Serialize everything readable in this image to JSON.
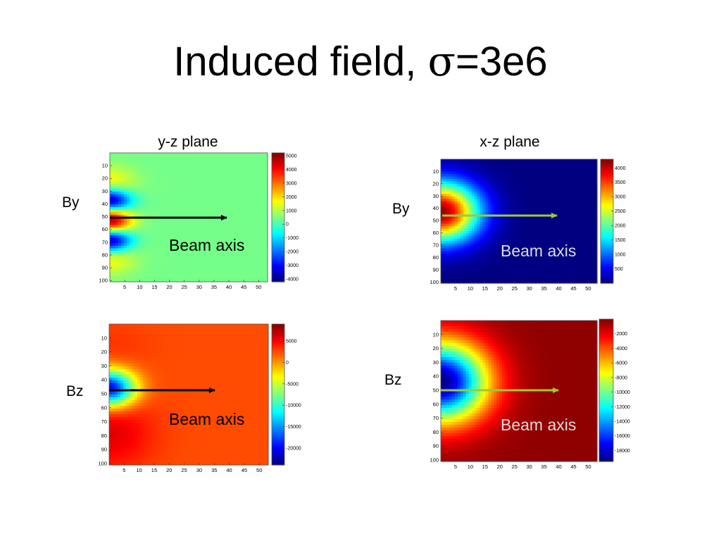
{
  "slide": {
    "title_prefix": "Induced field, ",
    "title_symbol": "σ",
    "title_suffix": "=3e6",
    "col_labels": [
      "y-z plane",
      "x-z plane"
    ],
    "row_labels": [
      "By",
      "By",
      "Bz",
      "Bz"
    ],
    "beam_label": "Beam axis",
    "colors": {
      "arrow_left": "#000000",
      "arrow_right": "#9acd32",
      "beam_text_right": "#dddddd"
    }
  },
  "chart_data": [
    {
      "type": "heatmap",
      "name": "yz-by",
      "x_ticks": [
        5,
        10,
        15,
        20,
        25,
        30,
        35,
        40,
        45,
        50
      ],
      "xlim": [
        0,
        53
      ],
      "y_ticks": [
        10,
        20,
        30,
        40,
        50,
        60,
        70,
        80,
        90,
        100
      ],
      "ylim": [
        0,
        101
      ],
      "colorbar_ticks": [
        5000,
        4000,
        3000,
        2000,
        1000,
        0,
        -1000,
        -2000,
        -3000,
        -4000
      ],
      "clim": [
        -4200,
        5200
      ],
      "background": 400,
      "sources": [
        {
          "amp": 5200,
          "x0": 0,
          "y0": 53,
          "sx": 5,
          "sy": 8
        },
        {
          "amp": -5000,
          "x0": 0,
          "y0": 38,
          "sx": 5,
          "sy": 7
        },
        {
          "amp": -5000,
          "x0": 0,
          "y0": 68,
          "sx": 5,
          "sy": 7
        },
        {
          "amp": 1400,
          "x0": 0,
          "y0": 24,
          "sx": 6,
          "sy": 9
        },
        {
          "amp": 1400,
          "x0": 0,
          "y0": 82,
          "sx": 6,
          "sy": 9
        }
      ]
    },
    {
      "type": "heatmap",
      "name": "xz-by",
      "x_ticks": [
        5,
        10,
        15,
        20,
        25,
        30,
        35,
        40,
        45,
        50
      ],
      "xlim": [
        0,
        53
      ],
      "y_ticks": [
        10,
        20,
        30,
        40,
        50,
        60,
        70,
        80,
        90,
        100
      ],
      "ylim": [
        0,
        101
      ],
      "colorbar_ticks": [
        4000,
        3500,
        3000,
        2500,
        2000,
        1500,
        1000,
        500
      ],
      "clim": [
        0,
        4300
      ],
      "background": 0,
      "sources": [
        {
          "amp": 4200,
          "x0": 0,
          "y0": 43,
          "sx": 9,
          "sy": 17
        }
      ]
    },
    {
      "type": "heatmap",
      "name": "yz-bz",
      "x_ticks": [
        5,
        10,
        15,
        20,
        25,
        30,
        35,
        40,
        45,
        50
      ],
      "xlim": [
        0,
        53
      ],
      "y_ticks": [
        10,
        20,
        30,
        40,
        50,
        60,
        70,
        80,
        90,
        100
      ],
      "ylim": [
        0,
        101
      ],
      "colorbar_ticks": [
        5000,
        0,
        -5000,
        -10000,
        -15000,
        -20000
      ],
      "clim": [
        -24000,
        9000
      ],
      "background": 2400,
      "sources": [
        {
          "amp": -23000,
          "x0": 0,
          "y0": 46,
          "sx": 6,
          "sy": 9
        },
        {
          "amp": 3500,
          "x0": 0,
          "y0": 78,
          "sx": 10,
          "sy": 18
        },
        {
          "amp": 800,
          "x0": 0,
          "y0": 15,
          "sx": 10,
          "sy": 12
        }
      ]
    },
    {
      "type": "heatmap",
      "name": "xz-bz",
      "x_ticks": [
        5,
        10,
        15,
        20,
        25,
        30,
        35,
        40,
        45,
        50
      ],
      "xlim": [
        0,
        53
      ],
      "y_ticks": [
        10,
        20,
        30,
        40,
        50,
        60,
        70,
        80,
        90,
        100
      ],
      "ylim": [
        0,
        101
      ],
      "colorbar_ticks": [
        -2000,
        -4000,
        -6000,
        -8000,
        -10000,
        -12000,
        -14000,
        -16000,
        -18000
      ],
      "clim": [
        -19500,
        0
      ],
      "background": -300,
      "sources": [
        {
          "amp": -19000,
          "x0": 0,
          "y0": 44,
          "sx": 11,
          "sy": 20
        }
      ]
    }
  ]
}
